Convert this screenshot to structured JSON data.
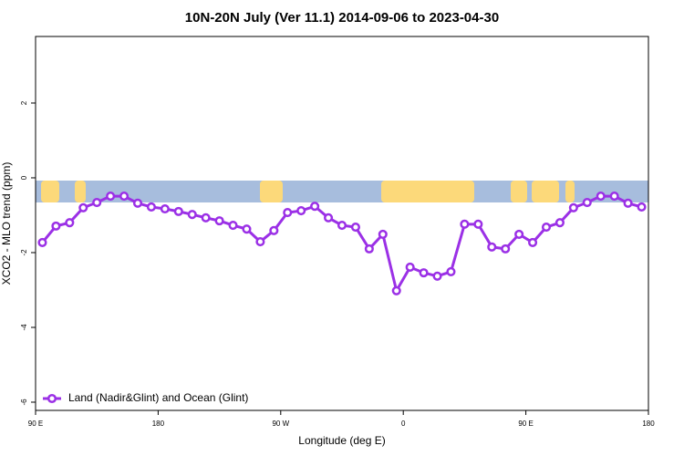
{
  "chart_data": {
    "type": "line",
    "title": "10N-20N July (Ver 11.1)   2014-09-06 to 2023-04-30",
    "x_label": "Longitude (deg E)",
    "y_label": "XCO2 - MLO trend (ppm)",
    "x": [
      95,
      105,
      115,
      125,
      135,
      145,
      155,
      165,
      175,
      185,
      195,
      205,
      215,
      225,
      235,
      245,
      255,
      265,
      275,
      285,
      295,
      305,
      315,
      325,
      335,
      345,
      355,
      365,
      375,
      385,
      395,
      405,
      415,
      425,
      435,
      445,
      455,
      465,
      475,
      485,
      495,
      505,
      515,
      525,
      535
    ],
    "series": [
      {
        "name": "Land (Nadir&Glint) and Ocean (Glint)",
        "color": "#9b30e6",
        "values": [
          -1.73,
          -1.29,
          -1.2,
          -0.8,
          -0.66,
          -0.49,
          -0.49,
          -0.68,
          -0.78,
          -0.83,
          -0.9,
          -0.98,
          -1.07,
          -1.15,
          -1.27,
          -1.37,
          -1.71,
          -1.41,
          -0.93,
          -0.88,
          -0.76,
          -1.07,
          -1.27,
          -1.32,
          -1.9,
          -1.51,
          -3.02,
          -2.39,
          -2.54,
          -2.63,
          -2.51,
          -1.24,
          -1.24,
          -1.85,
          -1.9,
          -1.51,
          -1.73,
          -1.32,
          -1.2,
          -0.8,
          -0.66,
          -0.49,
          -0.49,
          -0.68,
          -0.78
        ]
      }
    ],
    "xlim": [
      90,
      540
    ],
    "xticks": [
      {
        "value": 90,
        "label": "90 E"
      },
      180,
      {
        "value": 270,
        "label": "90 W"
      },
      {
        "value": 360,
        "label": "0"
      },
      {
        "value": 450,
        "label": "90 E"
      },
      {
        "value": 540,
        "label": "180"
      }
    ],
    "ylim": [
      -6.22,
      3.78
    ],
    "yticks": [
      -6,
      -4,
      -2,
      0,
      2
    ],
    "legend": "bottom-left"
  }
}
